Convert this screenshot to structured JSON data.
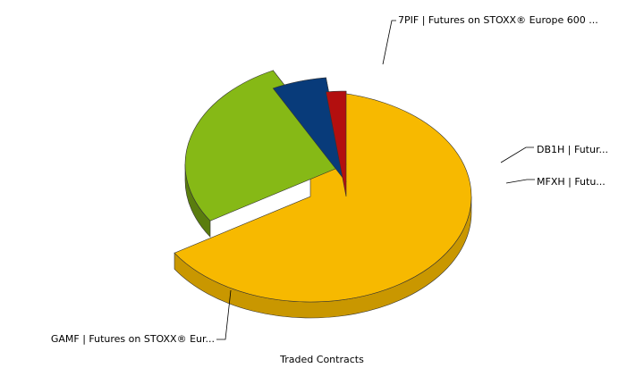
{
  "chart_data": {
    "type": "pie",
    "title": "Traded Contracts",
    "three_d": true,
    "exploded": true,
    "slices": [
      {
        "label": "GAMF | Futures on STOXX® Eur...",
        "value": 66.0,
        "color": "#f7b900",
        "side_color": "#c99700"
      },
      {
        "label": "7PIF | Futures on STOXX® Europe 600 ...",
        "value": 26.5,
        "color": "#86b916",
        "side_color": "#5a7d0e"
      },
      {
        "label": "DB1H | Futur...",
        "value": 5.5,
        "color": "#083b7a",
        "side_color": "#04244d"
      },
      {
        "label": "MFXH | Futu...",
        "value": 2.0,
        "color": "#b30f0f",
        "side_color": "#7a0808"
      }
    ]
  }
}
